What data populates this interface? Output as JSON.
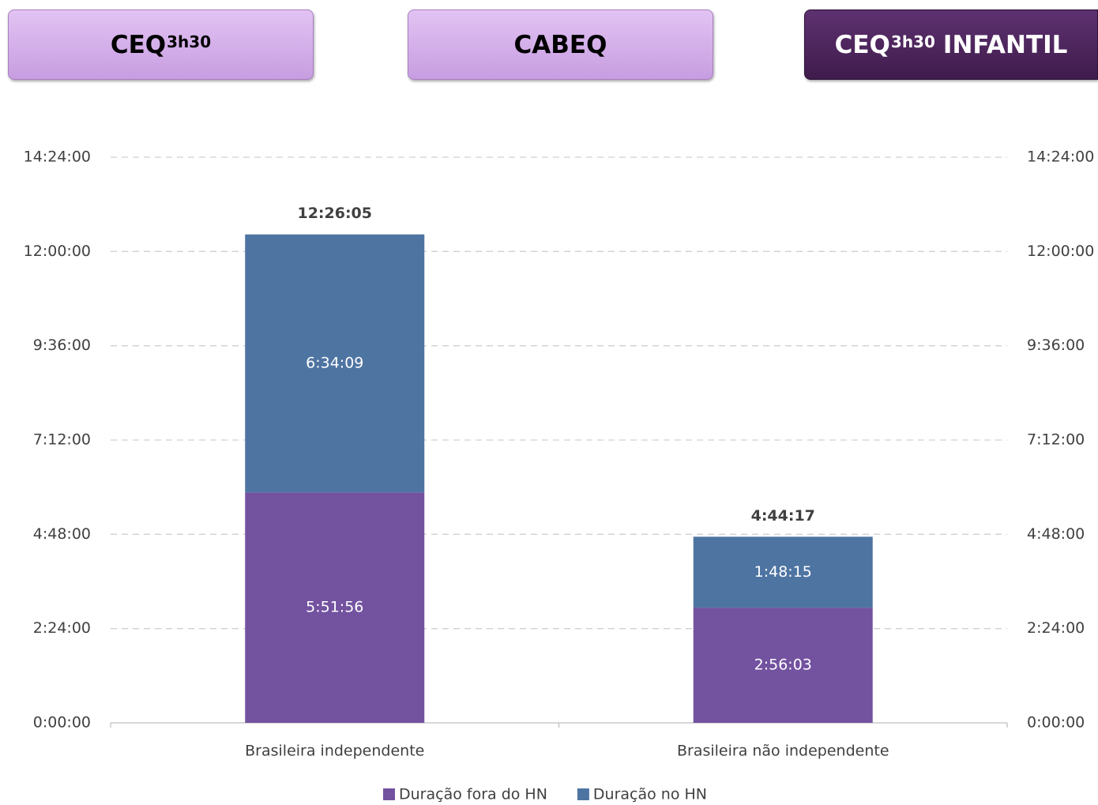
{
  "tabs": [
    {
      "text": "CEQ",
      "sup": "3h30",
      "active": false
    },
    {
      "text": "CABEQ",
      "active": false
    },
    {
      "text": "CEQ",
      "sup": "3h30",
      "suffix": "INFANTIL",
      "active": true
    }
  ],
  "chart_data": {
    "type": "stacked_bar",
    "categories": [
      "Brasileira independente",
      "Brasileira não independente"
    ],
    "series": [
      {
        "name": "Duração fora do HN",
        "color": "#7352a0",
        "values": [
          5.8656,
          2.9342
        ],
        "value_labels": [
          "5:51:56",
          "2:56:03"
        ]
      },
      {
        "name": "Duração no HN",
        "color": "#4e74a2",
        "values": [
          6.5692,
          1.8042
        ],
        "value_labels": [
          "6:34:09",
          "1:48:15"
        ]
      }
    ],
    "totals": [
      12.4347,
      4.7381
    ],
    "total_labels": [
      "12:26:05",
      "4:44:17"
    ],
    "ylim": [
      0,
      14.4
    ],
    "yticks": [
      {
        "value": 0,
        "label": "0:00:00"
      },
      {
        "value": 2.4,
        "label": "2:24:00"
      },
      {
        "value": 4.8,
        "label": "4:48:00"
      },
      {
        "value": 7.2,
        "label": "7:12:00"
      },
      {
        "value": 9.6,
        "label": "9:36:00"
      },
      {
        "value": 12,
        "label": "12:00:00"
      },
      {
        "value": 14.4,
        "label": "14:24:00"
      }
    ],
    "y2lim": [
      0,
      14.4
    ],
    "y2ticks": [
      {
        "value": 0,
        "label": "0:00:00"
      },
      {
        "value": 2.4,
        "label": "2:24:00"
      },
      {
        "value": 4.8,
        "label": "4:48:00"
      },
      {
        "value": 7.2,
        "label": "7:12:00"
      },
      {
        "value": 9.6,
        "label": "9:36:00"
      },
      {
        "value": 12,
        "label": "12:00:00"
      },
      {
        "value": 14.4,
        "label": "14:24:00"
      }
    ],
    "grid": true,
    "legend": "bottom"
  }
}
